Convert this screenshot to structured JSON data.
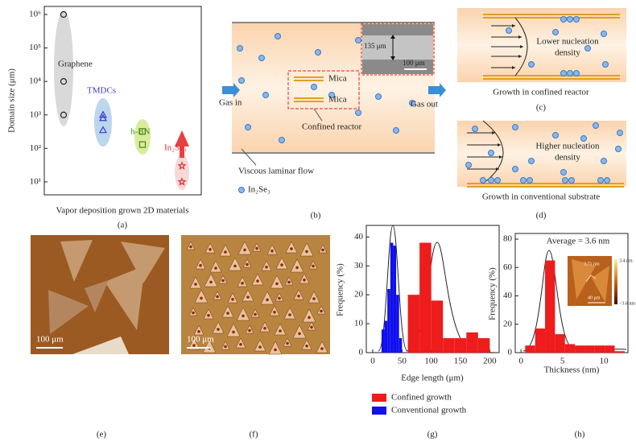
{
  "chart_data": [
    {
      "type": "scatter",
      "panel": "(a)",
      "x_label": "Vapor deposition grown 2D materials",
      "y_label": "Domain size (μm)",
      "log_y": true,
      "ylim": [
        4.1,
        1740000
      ],
      "yticks": [
        {
          "value": 10,
          "label": "10¹"
        },
        {
          "value": 100,
          "label": "10²"
        },
        {
          "value": 1000,
          "label": "10³"
        },
        {
          "value": 10000,
          "label": "10⁴"
        },
        {
          "value": 100000,
          "label": "10⁵"
        },
        {
          "value": 1000000,
          "label": "10⁶"
        }
      ],
      "series": [
        {
          "name": "Graphene",
          "color": "#222222",
          "marker": "circle",
          "values": [
            1000000,
            10000,
            1000
          ]
        },
        {
          "name": "TMDCs",
          "color": "#3b3bd0",
          "marker": "triangle",
          "values": [
            1000,
            800,
            350
          ]
        },
        {
          "name": "h-BN",
          "color": "#4a8a1a",
          "marker": "square",
          "values": [
            320,
            130
          ]
        },
        {
          "name": "In₂Se₃",
          "color": "#e03030",
          "marker": "star",
          "values": [
            30,
            10
          ]
        }
      ]
    },
    {
      "type": "histogram",
      "panel": "(g)",
      "x_label": "Edge length (μm)",
      "y_label": "Frequency (%)",
      "xlim": [
        -11,
        216
      ],
      "ylim": [
        0,
        44
      ],
      "xticks": [
        0,
        50,
        100,
        150,
        200
      ],
      "yticks": [
        0,
        10,
        20,
        30,
        40
      ],
      "legend": "below",
      "series": [
        {
          "name": "Confined growth",
          "color": "#ee1c1c",
          "bins": [
            60,
            80,
            100,
            120,
            140,
            160,
            180,
            200
          ],
          "values": [
            20,
            38,
            18,
            5,
            5,
            7,
            5
          ]
        },
        {
          "name": "Conventional growth",
          "color": "#1010ee",
          "bins": [
            15,
            20,
            25,
            30,
            35,
            40,
            45,
            50
          ],
          "values": [
            8,
            11,
            22,
            38,
            37,
            20,
            5
          ]
        }
      ]
    },
    {
      "type": "histogram",
      "panel": "(h)",
      "x_label": "Thickness (nm)",
      "y_label": "Frequency (%)",
      "annotation": "Average = 3.6 nm",
      "xlim": [
        -0.7,
        12.9
      ],
      "ylim": [
        0,
        84
      ],
      "xticks": [
        0,
        5,
        10
      ],
      "yticks": [
        0,
        20,
        40,
        60,
        80
      ],
      "series": [
        {
          "name": "Thickness",
          "color": "#ee1c1c",
          "bins": [
            0.5,
            1.7,
            2.9,
            4.1,
            5.3,
            6.5,
            7.7,
            8.9,
            10.1,
            11.3,
            12.5
          ],
          "values": [
            5,
            17,
            65,
            13,
            6,
            5,
            5,
            5,
            5,
            1
          ]
        }
      ],
      "inset": {
        "height_label": "3.71 nm",
        "scale_bar": "40 μm",
        "colorbar_max": "3.4 nm",
        "colorbar_min": "−3.6 nm"
      }
    }
  ],
  "diagram_b": {
    "gas_in": "Gas in",
    "gas_out": "Gas out",
    "mica_top": "Mica",
    "mica_bottom": "Mica",
    "confined": "Confined reactor",
    "flow": "Viscous laminar flow",
    "legend": "In₂Se₃",
    "inset_width": "135 μm",
    "inset_scale": "100 μm",
    "panel": "(b)"
  },
  "diagram_c": {
    "note": [
      "Lower nucleation",
      "density"
    ],
    "caption": "Growth in confined reactor",
    "panel": "(c)"
  },
  "diagram_d": {
    "note": [
      "Higher nucleation",
      "density"
    ],
    "caption": "Growth in conventional substrate",
    "panel": "(d)"
  },
  "image_e": {
    "scale_bar": "100 μm",
    "panel": "(e)"
  },
  "image_f": {
    "scale_bar": "100 μm",
    "panel": "(f)"
  }
}
